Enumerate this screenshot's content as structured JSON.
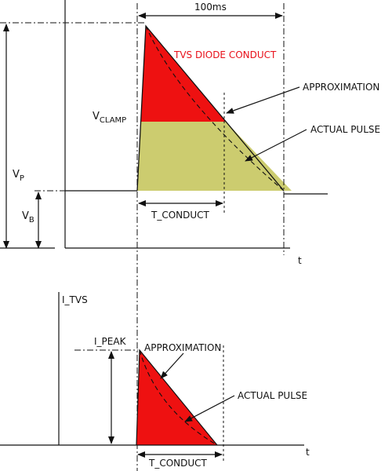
{
  "colors": {
    "red_fill": "#ee1111",
    "olive_fill": "#cccc6f",
    "text_red": "#e8101a",
    "line": "#111111"
  },
  "top_graph": {
    "duration_label": "100ms",
    "tvs_conduct_label": "TVS DIODE CONDUCT",
    "vclamp_label": {
      "main": "V",
      "sub": "CLAMP"
    },
    "vp_label": {
      "main": "V",
      "sub": "P"
    },
    "vb_label": {
      "main": "V",
      "sub": "B"
    },
    "approximation_label": "APPROXIMATION",
    "actual_pulse_label": "ACTUAL PULSE",
    "t_conduct_label": "T_CONDUCT",
    "t_axis_label": "t"
  },
  "bottom_graph": {
    "y_axis_label": "I_TVS",
    "ipeak_label": "I_PEAK",
    "approximation_label": "APPROXIMATION",
    "actual_pulse_label": "ACTUAL PULSE",
    "t_conduct_label": "T_CONDUCT",
    "t_axis_label": "t"
  }
}
